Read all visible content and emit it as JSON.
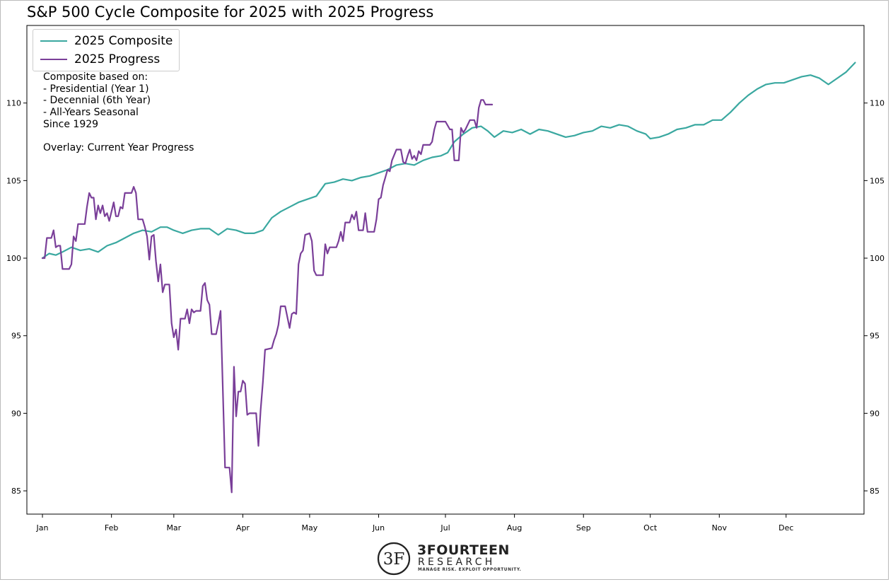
{
  "chart_data": {
    "type": "line",
    "title": "S&P 500 Cycle Composite for 2025 with 2025 Progress",
    "xlabel": "",
    "ylabel": "",
    "x_axis": {
      "unit": "day_of_year",
      "range": [
        -6,
        370
      ],
      "tick_positions": [
        1,
        32,
        60,
        91,
        121,
        152,
        182,
        213,
        244,
        274,
        305,
        335
      ],
      "tick_labels": [
        "Jan",
        "Feb",
        "Mar",
        "Apr",
        "May",
        "Jun",
        "Jul",
        "Aug",
        "Sep",
        "Oct",
        "Nov",
        "Dec"
      ]
    },
    "y_axis": {
      "range": [
        83.5,
        115.0
      ],
      "ticks": [
        85,
        90,
        95,
        100,
        105,
        110
      ],
      "tick_labels": [
        "85",
        "90",
        "95",
        "100",
        "105",
        "110"
      ],
      "mirror_right": true
    },
    "grid": false,
    "legend_position": "top-left",
    "series": [
      {
        "name": "2025 Composite",
        "color": "#3aa8a0",
        "points": [
          [
            1,
            100.0
          ],
          [
            4,
            100.3
          ],
          [
            7,
            100.2
          ],
          [
            10,
            100.4
          ],
          [
            14,
            100.7
          ],
          [
            18,
            100.5
          ],
          [
            22,
            100.6
          ],
          [
            26,
            100.4
          ],
          [
            30,
            100.8
          ],
          [
            34,
            101.0
          ],
          [
            38,
            101.3
          ],
          [
            42,
            101.6
          ],
          [
            46,
            101.8
          ],
          [
            50,
            101.7
          ],
          [
            54,
            102.0
          ],
          [
            57,
            102.0
          ],
          [
            60,
            101.8
          ],
          [
            64,
            101.6
          ],
          [
            68,
            101.8
          ],
          [
            72,
            101.9
          ],
          [
            76,
            101.9
          ],
          [
            80,
            101.5
          ],
          [
            84,
            101.9
          ],
          [
            88,
            101.8
          ],
          [
            92,
            101.6
          ],
          [
            96,
            101.6
          ],
          [
            100,
            101.8
          ],
          [
            104,
            102.6
          ],
          [
            108,
            103.0
          ],
          [
            112,
            103.3
          ],
          [
            116,
            103.6
          ],
          [
            120,
            103.8
          ],
          [
            124,
            104.0
          ],
          [
            128,
            104.8
          ],
          [
            132,
            104.9
          ],
          [
            136,
            105.1
          ],
          [
            140,
            105.0
          ],
          [
            144,
            105.2
          ],
          [
            148,
            105.3
          ],
          [
            152,
            105.5
          ],
          [
            156,
            105.7
          ],
          [
            160,
            106.0
          ],
          [
            164,
            106.1
          ],
          [
            168,
            106.0
          ],
          [
            172,
            106.3
          ],
          [
            176,
            106.5
          ],
          [
            180,
            106.6
          ],
          [
            183,
            106.8
          ],
          [
            186,
            107.5
          ],
          [
            190,
            108.0
          ],
          [
            194,
            108.4
          ],
          [
            198,
            108.5
          ],
          [
            201,
            108.2
          ],
          [
            204,
            107.8
          ],
          [
            208,
            108.2
          ],
          [
            212,
            108.1
          ],
          [
            216,
            108.3
          ],
          [
            220,
            108.0
          ],
          [
            224,
            108.3
          ],
          [
            228,
            108.2
          ],
          [
            232,
            108.0
          ],
          [
            236,
            107.8
          ],
          [
            240,
            107.9
          ],
          [
            244,
            108.1
          ],
          [
            248,
            108.2
          ],
          [
            252,
            108.5
          ],
          [
            256,
            108.4
          ],
          [
            260,
            108.6
          ],
          [
            264,
            108.5
          ],
          [
            268,
            108.2
          ],
          [
            272,
            108.0
          ],
          [
            274,
            107.7
          ],
          [
            278,
            107.8
          ],
          [
            282,
            108.0
          ],
          [
            286,
            108.3
          ],
          [
            290,
            108.4
          ],
          [
            294,
            108.6
          ],
          [
            298,
            108.6
          ],
          [
            302,
            108.9
          ],
          [
            306,
            108.9
          ],
          [
            310,
            109.4
          ],
          [
            314,
            110.0
          ],
          [
            318,
            110.5
          ],
          [
            322,
            110.9
          ],
          [
            326,
            111.2
          ],
          [
            330,
            111.3
          ],
          [
            334,
            111.3
          ],
          [
            338,
            111.5
          ],
          [
            342,
            111.7
          ],
          [
            346,
            111.8
          ],
          [
            350,
            111.6
          ],
          [
            354,
            111.2
          ],
          [
            358,
            111.6
          ],
          [
            362,
            112.0
          ],
          [
            366,
            112.6
          ]
        ]
      },
      {
        "name": "2025 Progress",
        "color": "#7a3f99",
        "points": [
          [
            1,
            100.0
          ],
          [
            2,
            100.0
          ],
          [
            3,
            101.3
          ],
          [
            5,
            101.3
          ],
          [
            6,
            101.8
          ],
          [
            7,
            100.7
          ],
          [
            8,
            100.8
          ],
          [
            9,
            100.8
          ],
          [
            10,
            99.3
          ],
          [
            13,
            99.3
          ],
          [
            14,
            99.6
          ],
          [
            15,
            101.4
          ],
          [
            16,
            101.1
          ],
          [
            17,
            102.2
          ],
          [
            20,
            102.2
          ],
          [
            21,
            103.3
          ],
          [
            22,
            104.2
          ],
          [
            23,
            103.9
          ],
          [
            24,
            103.9
          ],
          [
            25,
            102.5
          ],
          [
            26,
            103.4
          ],
          [
            27,
            102.9
          ],
          [
            28,
            103.4
          ],
          [
            29,
            102.7
          ],
          [
            30,
            102.9
          ],
          [
            31,
            102.4
          ],
          [
            32,
            103.0
          ],
          [
            33,
            103.6
          ],
          [
            34,
            102.7
          ],
          [
            35,
            102.7
          ],
          [
            36,
            103.3
          ],
          [
            37,
            103.2
          ],
          [
            38,
            104.2
          ],
          [
            41,
            104.2
          ],
          [
            42,
            104.6
          ],
          [
            43,
            104.2
          ],
          [
            44,
            102.5
          ],
          [
            46,
            102.5
          ],
          [
            47,
            102.0
          ],
          [
            48,
            101.4
          ],
          [
            49,
            99.9
          ],
          [
            50,
            101.4
          ],
          [
            51,
            101.5
          ],
          [
            52,
            99.8
          ],
          [
            53,
            98.5
          ],
          [
            54,
            99.6
          ],
          [
            55,
            97.8
          ],
          [
            56,
            98.3
          ],
          [
            58,
            98.3
          ],
          [
            59,
            95.8
          ],
          [
            60,
            94.9
          ],
          [
            61,
            95.4
          ],
          [
            62,
            94.1
          ],
          [
            63,
            96.1
          ],
          [
            65,
            96.1
          ],
          [
            66,
            96.7
          ],
          [
            67,
            95.8
          ],
          [
            68,
            96.7
          ],
          [
            69,
            96.5
          ],
          [
            70,
            96.6
          ],
          [
            72,
            96.6
          ],
          [
            73,
            98.2
          ],
          [
            74,
            98.4
          ],
          [
            75,
            97.3
          ],
          [
            76,
            97.0
          ],
          [
            77,
            95.1
          ],
          [
            79,
            95.1
          ],
          [
            80,
            95.8
          ],
          [
            81,
            96.6
          ],
          [
            83,
            86.5
          ],
          [
            85,
            86.5
          ],
          [
            86,
            84.9
          ],
          [
            87,
            93.0
          ],
          [
            88,
            89.8
          ],
          [
            89,
            91.4
          ],
          [
            90,
            91.4
          ],
          [
            91,
            92.1
          ],
          [
            92,
            91.9
          ],
          [
            93,
            89.9
          ],
          [
            94,
            90.0
          ],
          [
            97,
            90.0
          ],
          [
            98,
            87.9
          ],
          [
            99,
            90.2
          ],
          [
            100,
            92.0
          ],
          [
            101,
            94.1
          ],
          [
            104,
            94.2
          ],
          [
            105,
            94.7
          ],
          [
            106,
            95.1
          ],
          [
            107,
            95.7
          ],
          [
            108,
            96.9
          ],
          [
            110,
            96.9
          ],
          [
            112,
            95.5
          ],
          [
            113,
            96.4
          ],
          [
            114,
            96.5
          ],
          [
            115,
            96.4
          ],
          [
            116,
            99.6
          ],
          [
            117,
            100.3
          ],
          [
            118,
            100.5
          ],
          [
            119,
            101.5
          ],
          [
            121,
            101.6
          ],
          [
            122,
            101.1
          ],
          [
            123,
            99.2
          ],
          [
            124,
            98.9
          ],
          [
            127,
            98.9
          ],
          [
            128,
            100.9
          ],
          [
            129,
            100.3
          ],
          [
            130,
            100.7
          ],
          [
            133,
            100.7
          ],
          [
            134,
            101.1
          ],
          [
            135,
            101.7
          ],
          [
            136,
            101.1
          ],
          [
            137,
            102.3
          ],
          [
            139,
            102.3
          ],
          [
            140,
            102.8
          ],
          [
            141,
            102.5
          ],
          [
            142,
            103.0
          ],
          [
            143,
            101.8
          ],
          [
            145,
            101.8
          ],
          [
            146,
            102.9
          ],
          [
            147,
            101.7
          ],
          [
            150,
            101.7
          ],
          [
            151,
            102.5
          ],
          [
            152,
            103.8
          ],
          [
            153,
            103.9
          ],
          [
            154,
            104.7
          ],
          [
            155,
            105.2
          ],
          [
            156,
            105.7
          ],
          [
            157,
            105.6
          ],
          [
            158,
            106.3
          ],
          [
            160,
            107.0
          ],
          [
            162,
            107.0
          ],
          [
            163,
            106.2
          ],
          [
            164,
            106.1
          ],
          [
            165,
            106.6
          ],
          [
            166,
            107.0
          ],
          [
            167,
            106.4
          ],
          [
            168,
            106.6
          ],
          [
            169,
            106.3
          ],
          [
            170,
            106.9
          ],
          [
            171,
            106.7
          ],
          [
            172,
            107.3
          ],
          [
            175,
            107.3
          ],
          [
            176,
            107.5
          ],
          [
            177,
            108.3
          ],
          [
            178,
            108.8
          ],
          [
            182,
            108.8
          ],
          [
            184,
            108.3
          ],
          [
            185,
            108.3
          ],
          [
            186,
            106.3
          ],
          [
            188,
            106.3
          ],
          [
            189,
            108.4
          ],
          [
            190,
            108.1
          ],
          [
            191,
            108.3
          ],
          [
            193,
            108.9
          ],
          [
            195,
            108.9
          ],
          [
            196,
            108.4
          ],
          [
            197,
            109.7
          ],
          [
            198,
            110.2
          ],
          [
            199,
            110.2
          ],
          [
            200,
            109.9
          ],
          [
            203,
            109.9
          ]
        ]
      }
    ],
    "annotation": {
      "lines": [
        "Composite based on:",
        "- Presidential (Year 1)",
        "- Decennial (6th Year)",
        "- All-Years Seasonal",
        "Since 1929",
        "",
        "Overlay: Current Year Progress"
      ]
    }
  },
  "logo": {
    "name": "3FOURTEEN",
    "sub": "RESEARCH",
    "tagline": "MANAGE RISK. EXPLOIT OPPORTUNITY.",
    "mark_letters": "3F"
  },
  "colors": {
    "composite": "#3aa8a0",
    "progress": "#7a3f99",
    "axis": "#000000"
  }
}
